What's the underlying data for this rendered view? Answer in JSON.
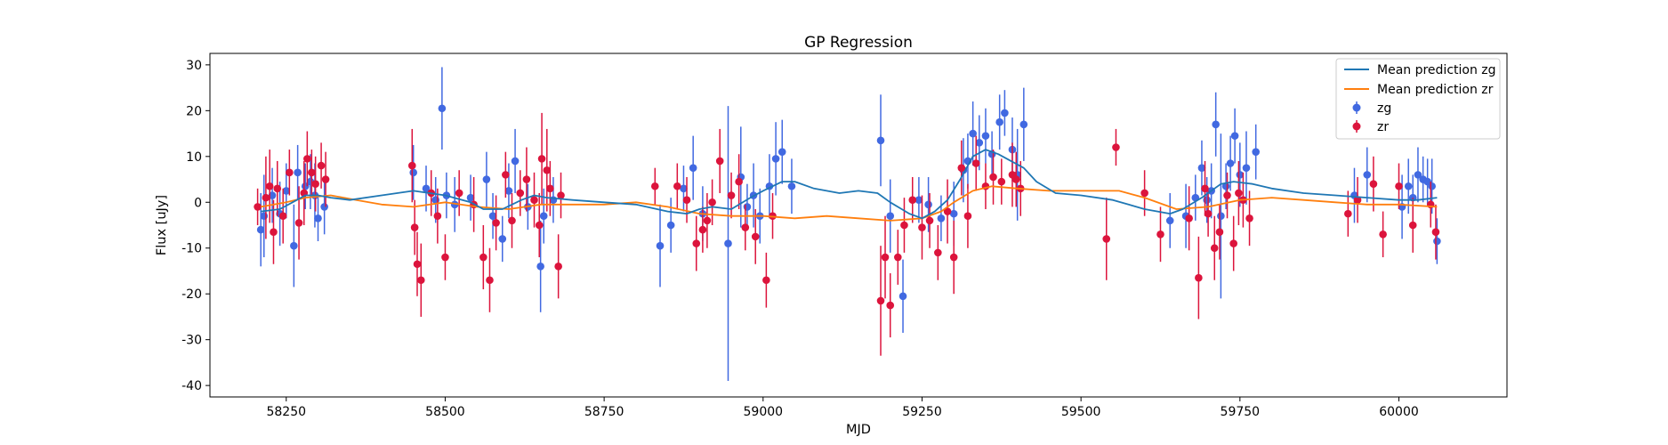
{
  "chart_data": {
    "type": "scatter",
    "title": "GP Regression",
    "xlabel": "MJD",
    "ylabel": "Flux [uJy]",
    "xlim": [
      58130,
      60170
    ],
    "ylim": [
      -42.5,
      32.5
    ],
    "xticks": [
      58250,
      58500,
      58750,
      59000,
      59250,
      59500,
      59750,
      60000
    ],
    "yticks": [
      -40,
      -30,
      -20,
      -10,
      0,
      10,
      20,
      30
    ],
    "grid": false,
    "legend": {
      "placement": "top-right",
      "entries": [
        "Mean prediction zg",
        "Mean prediction zr",
        "zg",
        "zr"
      ]
    },
    "colors": {
      "zg_line": "#1f77b4",
      "zr_line": "#ff7f0e",
      "zg_points": "#4169e1",
      "zr_points": "#dc143c"
    },
    "series": [
      {
        "name": "Mean prediction zg",
        "kind": "line",
        "x": [
          58210,
          58240,
          58260,
          58280,
          58300,
          58320,
          58350,
          58400,
          58450,
          58500,
          58540,
          58560,
          58590,
          58620,
          58640,
          58660,
          58700,
          58750,
          58800,
          58850,
          58880,
          58900,
          58920,
          58950,
          58980,
          59000,
          59030,
          59050,
          59080,
          59120,
          59150,
          59180,
          59200,
          59230,
          59250,
          59270,
          59290,
          59310,
          59330,
          59350,
          59370,
          59390,
          59410,
          59430,
          59460,
          59500,
          59550,
          59600,
          59640,
          59660,
          59690,
          59720,
          59740,
          59770,
          59800,
          59850,
          59900,
          59950,
          60000,
          60030,
          60060
        ],
        "y": [
          -2.0,
          -1.5,
          0.0,
          1.5,
          1.5,
          1.0,
          0.5,
          1.5,
          2.5,
          1.5,
          0.0,
          -1.5,
          -1.5,
          0.5,
          1.5,
          1.0,
          0.5,
          0.0,
          -0.5,
          -2.0,
          -2.5,
          -1.5,
          -1.0,
          -1.5,
          1.0,
          2.5,
          4.5,
          4.5,
          3.0,
          2.0,
          2.5,
          2.0,
          0.0,
          -2.5,
          -3.5,
          -2.0,
          0.5,
          5.0,
          10.0,
          11.5,
          10.5,
          9.0,
          7.5,
          4.5,
          2.0,
          1.5,
          0.5,
          -1.5,
          -2.5,
          -1.5,
          1.0,
          4.0,
          4.5,
          4.0,
          3.0,
          2.0,
          1.5,
          1.0,
          0.5,
          0.5,
          1.0
        ]
      },
      {
        "name": "Mean prediction zr",
        "kind": "line",
        "x": [
          58210,
          58250,
          58280,
          58320,
          58360,
          58400,
          58450,
          58500,
          58550,
          58600,
          58650,
          58700,
          58750,
          58800,
          58850,
          58900,
          58950,
          59000,
          59050,
          59100,
          59150,
          59200,
          59250,
          59280,
          59300,
          59330,
          59360,
          59400,
          59450,
          59500,
          59560,
          59600,
          59650,
          59700,
          59750,
          59800,
          59850,
          59900,
          59950,
          60000,
          60060
        ],
        "y": [
          -1.0,
          0.0,
          1.0,
          1.5,
          0.5,
          -0.5,
          -1.0,
          0.0,
          -1.0,
          -1.5,
          -0.5,
          -0.5,
          -0.5,
          0.0,
          -1.0,
          -2.5,
          -3.0,
          -3.0,
          -3.5,
          -3.0,
          -3.5,
          -4.0,
          -3.5,
          -2.0,
          0.0,
          2.5,
          3.5,
          3.0,
          2.5,
          2.5,
          2.5,
          1.0,
          -1.5,
          -1.0,
          0.5,
          1.0,
          0.5,
          0.0,
          -0.5,
          -0.5,
          -1.0
        ]
      },
      {
        "name": "zg",
        "kind": "errorbar",
        "x": [
          58210,
          58215,
          58228,
          58240,
          58250,
          58262,
          58268,
          58280,
          58288,
          58295,
          58300,
          58310,
          58450,
          58470,
          58485,
          58495,
          58502,
          58515,
          58540,
          58565,
          58575,
          58590,
          58600,
          58610,
          58630,
          58650,
          58655,
          58670,
          58838,
          58855,
          58875,
          58890,
          58905,
          58945,
          58965,
          58975,
          58985,
          58995,
          59010,
          59020,
          59030,
          59045,
          59185,
          59200,
          59220,
          59245,
          59260,
          59280,
          59300,
          59315,
          59322,
          59330,
          59340,
          59350,
          59360,
          59372,
          59380,
          59392,
          59400,
          59410,
          59640,
          59665,
          59680,
          59690,
          59698,
          59705,
          59712,
          59720,
          59728,
          59735,
          59742,
          59750,
          59760,
          59775,
          59930,
          59950,
          60005,
          60015,
          60022,
          60030,
          60038,
          60045,
          60052,
          60060
        ],
        "y": [
          -6.0,
          -3.0,
          1.5,
          -2.5,
          2.5,
          -9.5,
          6.5,
          3.5,
          4.5,
          1.5,
          -3.5,
          -1.0,
          6.5,
          3.0,
          0.5,
          20.5,
          1.5,
          -0.5,
          1.0,
          5.0,
          -3.0,
          -8.0,
          2.5,
          9.0,
          -1.0,
          -14.0,
          -3.0,
          0.5,
          -9.5,
          -5.0,
          3.0,
          7.5,
          -2.5,
          -9.0,
          5.5,
          -1.0,
          1.5,
          -3.0,
          3.5,
          9.5,
          11.0,
          3.5,
          13.5,
          -3.0,
          -20.5,
          0.5,
          -0.5,
          -3.5,
          -2.5,
          7.0,
          9.0,
          15.0,
          13.0,
          14.5,
          10.5,
          17.5,
          19.5,
          11.5,
          6.0,
          17.0,
          -4.0,
          -3.0,
          1.0,
          7.5,
          0.5,
          2.5,
          17.0,
          -3.0,
          3.5,
          8.5,
          14.5,
          6.0,
          7.5,
          11.0,
          1.5,
          6.0,
          -1.0,
          3.5,
          1.0,
          6.0,
          5.0,
          4.5,
          3.5,
          -8.5
        ],
        "err": [
          8,
          9,
          6,
          7,
          6,
          9,
          6,
          5,
          6,
          7,
          5,
          6,
          6,
          5,
          5,
          9,
          5,
          6,
          5,
          6,
          5,
          5,
          6,
          7,
          5,
          10,
          6,
          5,
          9,
          6,
          5,
          7,
          6,
          30,
          11,
          5,
          7,
          6,
          7,
          8,
          7,
          6,
          10,
          8,
          8,
          5,
          6,
          5,
          7,
          7,
          6,
          7,
          6,
          6,
          5,
          6,
          5,
          7,
          10,
          8,
          6,
          7,
          5,
          6,
          5,
          6,
          7,
          18,
          5,
          6,
          6,
          7,
          8,
          6,
          6,
          6,
          7,
          6,
          5,
          6,
          5,
          5,
          6,
          5
        ]
      },
      {
        "name": "zr",
        "kind": "errorbar",
        "x": [
          58205,
          58218,
          58224,
          58230,
          58236,
          58245,
          58255,
          58270,
          58278,
          58283,
          58290,
          58296,
          58305,
          58312,
          58448,
          58452,
          58456,
          58462,
          58478,
          58488,
          58500,
          58522,
          58545,
          58560,
          58570,
          58580,
          58595,
          58605,
          58618,
          58628,
          58640,
          58648,
          58652,
          58660,
          58665,
          58678,
          58682,
          58830,
          58865,
          58880,
          58895,
          58905,
          58912,
          58920,
          58932,
          58950,
          58962,
          58972,
          58988,
          59005,
          59015,
          59185,
          59192,
          59200,
          59212,
          59222,
          59235,
          59250,
          59262,
          59275,
          59290,
          59300,
          59312,
          59322,
          59335,
          59350,
          59362,
          59375,
          59392,
          59398,
          59405,
          59540,
          59555,
          59600,
          59625,
          59670,
          59685,
          59695,
          59700,
          59710,
          59718,
          59730,
          59740,
          59748,
          59755,
          59765,
          59920,
          59935,
          59960,
          59975,
          60000,
          60022,
          60050,
          60058
        ],
        "y": [
          -1.0,
          1.0,
          3.5,
          -6.5,
          3.0,
          -3.0,
          6.5,
          -4.5,
          2.0,
          9.5,
          6.5,
          4.0,
          8.0,
          5.0,
          8.0,
          -5.5,
          -13.5,
          -17.0,
          2.0,
          -3.0,
          -12.0,
          2.0,
          -0.5,
          -12.0,
          -17.0,
          -4.5,
          6.0,
          -4.0,
          2.0,
          5.0,
          0.5,
          -5.0,
          9.5,
          7.0,
          3.0,
          -14.0,
          1.5,
          3.5,
          3.5,
          0.5,
          -9.0,
          -6.0,
          -4.0,
          0.0,
          9.0,
          1.5,
          4.5,
          -5.5,
          -7.5,
          -17.0,
          -3.0,
          -21.5,
          -12.0,
          -22.5,
          -12.0,
          -5.0,
          0.5,
          -5.5,
          -4.0,
          -11.0,
          -2.0,
          -12.0,
          7.5,
          -3.0,
          8.5,
          3.5,
          5.5,
          4.5,
          6.0,
          5.0,
          3.0,
          -8.0,
          12.0,
          2.0,
          -7.0,
          -3.5,
          -16.5,
          3.0,
          -2.5,
          -10.0,
          -6.5,
          1.5,
          -9.0,
          2.0,
          0.5,
          -3.5,
          -2.5,
          0.5,
          4.0,
          -7.0,
          3.5,
          -5.0,
          -0.5,
          -6.5
        ],
        "err": [
          4,
          9,
          8,
          7,
          6,
          6,
          5,
          8,
          7,
          6,
          5,
          6,
          5,
          6,
          8,
          6,
          7,
          8,
          5,
          6,
          5,
          5,
          6,
          7,
          7,
          6,
          5,
          6,
          5,
          7,
          6,
          7,
          10,
          9,
          6,
          7,
          5,
          4,
          5,
          5,
          6,
          5,
          6,
          5,
          7,
          5,
          6,
          5,
          6,
          6,
          5,
          12,
          9,
          7,
          6,
          6,
          5,
          7,
          6,
          6,
          7,
          8,
          6,
          7,
          6,
          5,
          6,
          5,
          7,
          6,
          6,
          9,
          4,
          5,
          6,
          7,
          9,
          6,
          5,
          7,
          6,
          5,
          6,
          7,
          6,
          6,
          5,
          5,
          6,
          5,
          5,
          6,
          5,
          6
        ]
      }
    ]
  }
}
